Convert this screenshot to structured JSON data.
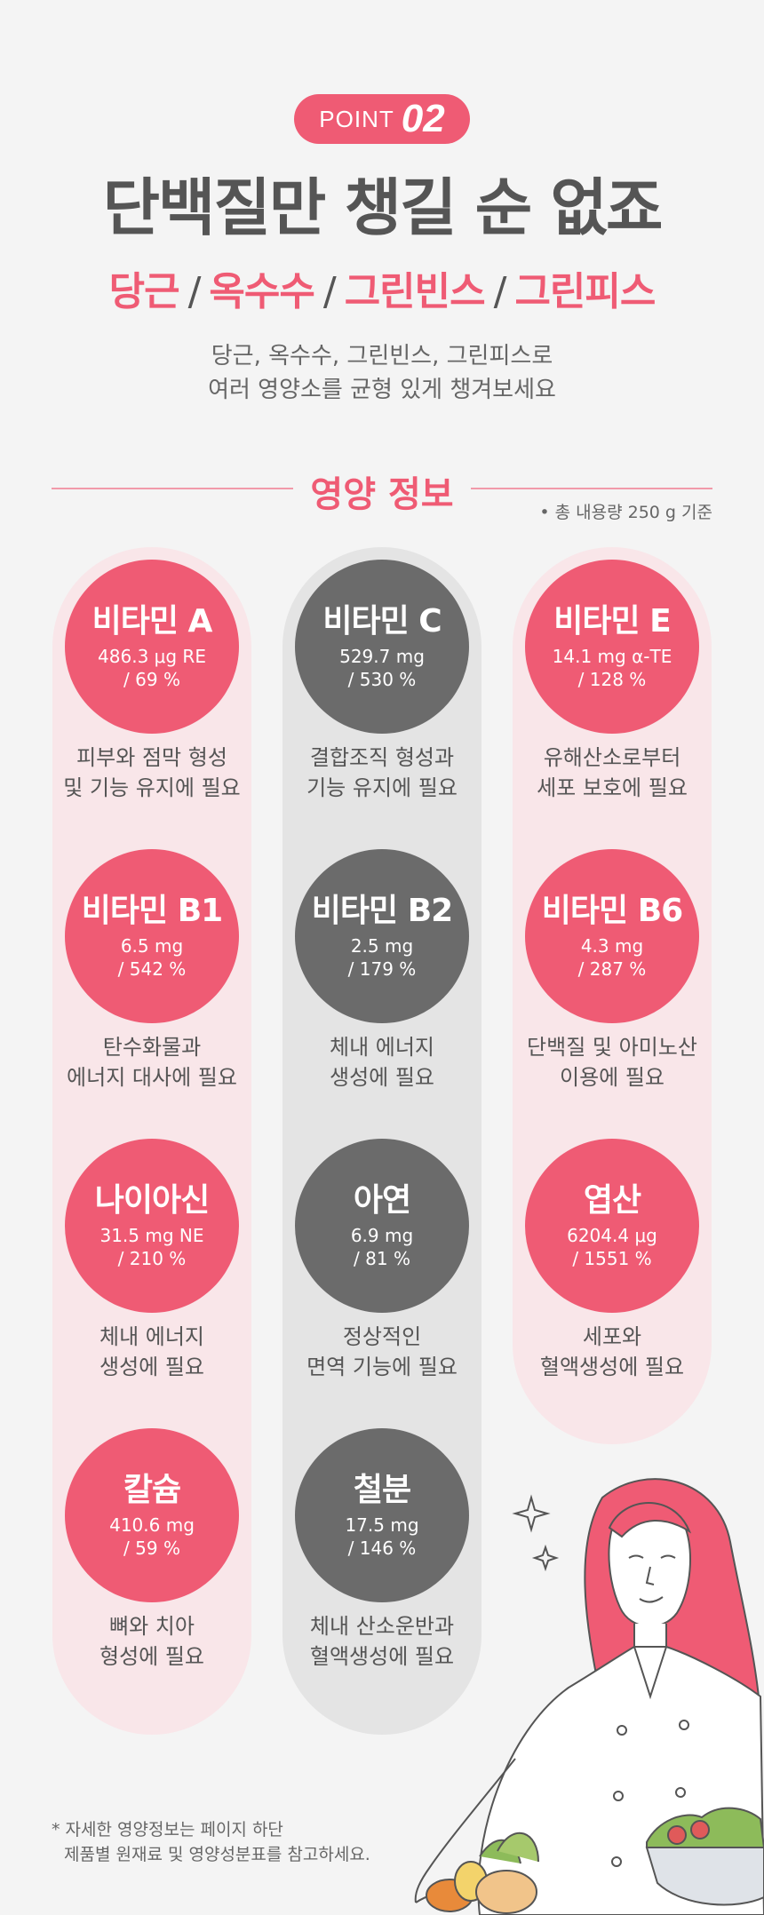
{
  "header": {
    "point_word": "POINT",
    "point_num": "02",
    "title": "단백질만 챙길 순 없죠",
    "vegetables": [
      "당근",
      "옥수수",
      "그린빈스",
      "그린피스"
    ],
    "separator": "/",
    "desc_line1": "당근, 옥수수, 그린빈스, 그린피스로",
    "desc_line2": "여러 영양소를 균형 있게 챙겨보세요"
  },
  "section": {
    "title": "영양 정보",
    "note": "• 총 내용량 250 g 기준"
  },
  "nutrients": [
    {
      "name": "비타민 A",
      "amount": "486.3 μg RE",
      "percent": "/ 69 %",
      "role1": "피부와 점막 형성",
      "role2": "및 기능 유지에 필요",
      "color": "pink"
    },
    {
      "name": "비타민 C",
      "amount": "529.7 mg",
      "percent": "/ 530 %",
      "role1": "결합조직 형성과",
      "role2": "기능 유지에 필요",
      "color": "grey"
    },
    {
      "name": "비타민 E",
      "amount": "14.1 mg α-TE",
      "percent": "/ 128 %",
      "role1": "유해산소로부터",
      "role2": "세포 보호에 필요",
      "color": "pink"
    },
    {
      "name": "비타민 B1",
      "amount": "6.5 mg",
      "percent": "/ 542 %",
      "role1": "탄수화물과",
      "role2": "에너지 대사에 필요",
      "color": "pink"
    },
    {
      "name": "비타민 B2",
      "amount": "2.5 mg",
      "percent": "/ 179 %",
      "role1": "체내 에너지",
      "role2": "생성에 필요",
      "color": "grey"
    },
    {
      "name": "비타민 B6",
      "amount": "4.3 mg",
      "percent": "/ 287 %",
      "role1": "단백질 및 아미노산",
      "role2": "이용에 필요",
      "color": "pink"
    },
    {
      "name": "나이아신",
      "amount": "31.5 mg NE",
      "percent": "/ 210 %",
      "role1": "체내 에너지",
      "role2": "생성에 필요",
      "color": "pink"
    },
    {
      "name": "아연",
      "amount": "6.9 mg",
      "percent": "/ 81 %",
      "role1": "정상적인",
      "role2": "면역 기능에 필요",
      "color": "grey"
    },
    {
      "name": "엽산",
      "amount": "6204.4 μg",
      "percent": "/ 1551 %",
      "role1": "세포와",
      "role2": "혈액생성에 필요",
      "color": "pink"
    },
    {
      "name": "칼슘",
      "amount": "410.6 mg",
      "percent": "/ 59 %",
      "role1": "뼈와 치아",
      "role2": "형성에 필요",
      "color": "pink"
    },
    {
      "name": "철분",
      "amount": "17.5 mg",
      "percent": "/ 146 %",
      "role1": "체내 산소운반과",
      "role2": "혈액생성에 필요",
      "color": "grey"
    }
  ],
  "footnote": {
    "line1": "* 자세한 영양정보는 페이지 하단",
    "line2": "제품별 원재료 및 영양성분표를 참고하세요."
  },
  "colors": {
    "accent": "#ef5b74",
    "dark_circle": "#6b6b6b",
    "pink_column": "#f9e6e9",
    "grey_column": "#e4e4e4",
    "background": "#f4f4f4"
  },
  "illustration": "chef-woman-with-vegetable-bowl"
}
